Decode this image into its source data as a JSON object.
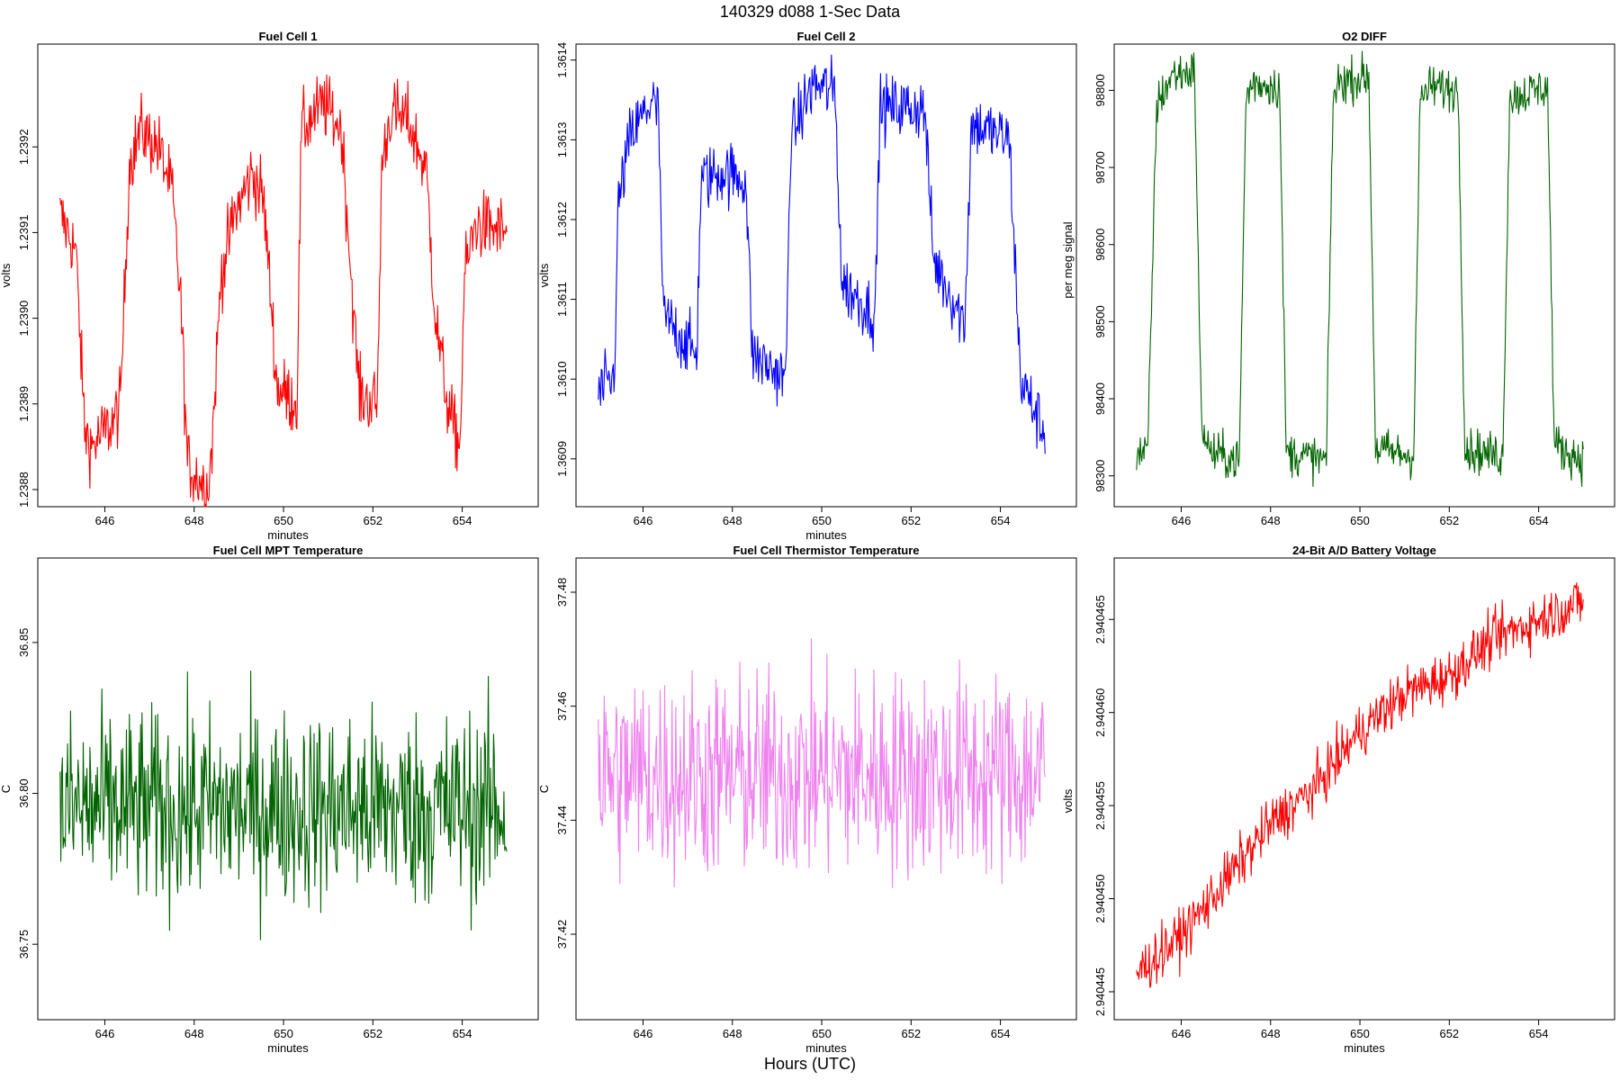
{
  "figure": {
    "title": "140329   d088   1-Sec Data",
    "common_xlabel": "Hours (UTC)"
  },
  "colors": {
    "red": "#ff0000",
    "blue": "#0000ff",
    "darkgreen": "#006400",
    "violet": "#ee82ee"
  },
  "chart_data": [
    {
      "type": "line",
      "title": "Fuel Cell 1",
      "xlabel": "minutes",
      "ylabel": "volts",
      "color": "#ff0000",
      "xlim": [
        644.5,
        655.7
      ],
      "ylim": [
        1.23878,
        1.23932
      ],
      "xticks": [
        646,
        648,
        650,
        652,
        654
      ],
      "xtick_labels": [
        "646",
        "648",
        "650",
        "652",
        "654"
      ],
      "yticks": [
        1.2388,
        1.2389,
        1.239,
        1.2391,
        1.2392
      ],
      "ytick_labels": [
        "1.2388",
        "1.2389",
        "1.2390",
        "1.2391",
        "1.2392"
      ],
      "series": [
        {
          "name": "Fuel Cell 1",
          "x_range": [
            645,
            655
          ],
          "noise": 2e-05,
          "breakpoints": [
            [
              645.0,
              1.23912
            ],
            [
              645.35,
              1.23908
            ],
            [
              645.55,
              1.23887
            ],
            [
              645.7,
              1.23885
            ],
            [
              646.2,
              1.23888
            ],
            [
              646.35,
              1.2389
            ],
            [
              646.55,
              1.23918
            ],
            [
              646.8,
              1.23922
            ],
            [
              647.2,
              1.2392
            ],
            [
              647.5,
              1.23915
            ],
            [
              647.7,
              1.23902
            ],
            [
              647.85,
              1.23883
            ],
            [
              648.3,
              1.2388
            ],
            [
              648.4,
              1.23885
            ],
            [
              648.6,
              1.23905
            ],
            [
              648.9,
              1.23912
            ],
            [
              649.3,
              1.23917
            ],
            [
              649.55,
              1.23914
            ],
            [
              649.75,
              1.239
            ],
            [
              649.85,
              1.23892
            ],
            [
              650.3,
              1.2389
            ],
            [
              650.4,
              1.23922
            ],
            [
              650.9,
              1.23925
            ],
            [
              651.3,
              1.23922
            ],
            [
              651.55,
              1.23902
            ],
            [
              651.7,
              1.23891
            ],
            [
              652.1,
              1.2389
            ],
            [
              652.2,
              1.23918
            ],
            [
              652.4,
              1.23924
            ],
            [
              652.8,
              1.23923
            ],
            [
              653.2,
              1.23917
            ],
            [
              653.4,
              1.239
            ],
            [
              653.7,
              1.23889
            ],
            [
              653.95,
              1.23885
            ],
            [
              654.05,
              1.23905
            ],
            [
              654.3,
              1.23911
            ],
            [
              655.0,
              1.2391
            ]
          ]
        }
      ]
    },
    {
      "type": "line",
      "title": "Fuel Cell 2",
      "xlabel": "minutes",
      "ylabel": "volts",
      "color": "#0000ff",
      "xlim": [
        644.5,
        655.7
      ],
      "ylim": [
        1.36084,
        1.36142
      ],
      "xticks": [
        646,
        648,
        650,
        652,
        654
      ],
      "xtick_labels": [
        "646",
        "648",
        "650",
        "652",
        "654"
      ],
      "yticks": [
        1.3609,
        1.361,
        1.3611,
        1.3612,
        1.3613,
        1.3614
      ],
      "ytick_labels": [
        "1.3609",
        "1.3610",
        "1.3611",
        "1.3612",
        "1.3613",
        "1.3614"
      ],
      "series": [
        {
          "name": "Fuel Cell 2",
          "x_range": [
            645,
            655
          ],
          "noise": 2e-05,
          "breakpoints": [
            [
              645.0,
              1.36098
            ],
            [
              645.35,
              1.361
            ],
            [
              645.45,
              1.36122
            ],
            [
              645.7,
              1.3613
            ],
            [
              646.2,
              1.36135
            ],
            [
              646.35,
              1.36133
            ],
            [
              646.45,
              1.36108
            ],
            [
              647.2,
              1.36103
            ],
            [
              647.3,
              1.36125
            ],
            [
              647.8,
              1.36126
            ],
            [
              648.3,
              1.36125
            ],
            [
              648.45,
              1.36103
            ],
            [
              649.2,
              1.361
            ],
            [
              649.3,
              1.3613
            ],
            [
              649.8,
              1.36137
            ],
            [
              650.3,
              1.36136
            ],
            [
              650.45,
              1.36112
            ],
            [
              651.2,
              1.36108
            ],
            [
              651.3,
              1.36134
            ],
            [
              652.3,
              1.36134
            ],
            [
              652.5,
              1.36115
            ],
            [
              653.2,
              1.36107
            ],
            [
              653.35,
              1.36132
            ],
            [
              654.2,
              1.3613
            ],
            [
              654.45,
              1.361
            ],
            [
              655.0,
              1.36093
            ]
          ]
        }
      ]
    },
    {
      "type": "line",
      "title": "O2 DIFF",
      "xlabel": "",
      "ylabel": "per meg signal",
      "color": "#006400",
      "xlim": [
        644.5,
        655.7
      ],
      "ylim": [
        98260,
        98860
      ],
      "xticks": [
        646,
        648,
        650,
        652,
        654
      ],
      "xtick_labels": [
        "646",
        "648",
        "650",
        "652",
        "654"
      ],
      "yticks": [
        98300,
        98400,
        98500,
        98600,
        98700,
        98800
      ],
      "ytick_labels": [
        "98300",
        "98400",
        "98500",
        "98600",
        "98700",
        "98800"
      ],
      "series": [
        {
          "name": "O2 DIFF",
          "x_range": [
            645,
            655
          ],
          "noise": 14,
          "breakpoints": [
            [
              645.0,
              98330
            ],
            [
              645.25,
              98330
            ],
            [
              645.45,
              98780
            ],
            [
              645.8,
              98820
            ],
            [
              646.3,
              98825
            ],
            [
              646.45,
              98370
            ],
            [
              646.65,
              98330
            ],
            [
              647.3,
              98320
            ],
            [
              647.45,
              98790
            ],
            [
              647.6,
              98810
            ],
            [
              648.2,
              98805
            ],
            [
              648.35,
              98330
            ],
            [
              649.25,
              98320
            ],
            [
              649.4,
              98790
            ],
            [
              649.55,
              98812
            ],
            [
              650.2,
              98818
            ],
            [
              650.35,
              98335
            ],
            [
              651.2,
              98325
            ],
            [
              651.35,
              98790
            ],
            [
              651.6,
              98805
            ],
            [
              652.2,
              98800
            ],
            [
              652.35,
              98335
            ],
            [
              653.2,
              98325
            ],
            [
              653.35,
              98790
            ],
            [
              654.2,
              98805
            ],
            [
              654.35,
              98340
            ],
            [
              655.0,
              98320
            ]
          ]
        }
      ]
    },
    {
      "type": "line",
      "title": "Fuel Cell MPT Temperature",
      "xlabel": "minutes",
      "ylabel": "C",
      "color": "#006400",
      "xlim": [
        644.5,
        655.7
      ],
      "ylim": [
        36.725,
        36.878
      ],
      "xticks": [
        646,
        648,
        650,
        652,
        654
      ],
      "xtick_labels": [
        "646",
        "648",
        "650",
        "652",
        "654"
      ],
      "yticks": [
        36.75,
        36.8,
        36.85
      ],
      "ytick_labels": [
        "36.75",
        "36.80",
        "36.85"
      ],
      "series": [
        {
          "name": "MPT Temperature",
          "x_range": [
            645,
            655
          ],
          "noise": 0.016,
          "breakpoints": [
            [
              645.0,
              36.795
            ],
            [
              655.0,
              36.795
            ]
          ]
        }
      ]
    },
    {
      "type": "line",
      "title": "Fuel Cell Thermistor Temperature",
      "xlabel": "minutes",
      "ylabel": "C",
      "color": "#ee82ee",
      "xlim": [
        644.5,
        655.7
      ],
      "ylim": [
        37.405,
        37.486
      ],
      "xticks": [
        646,
        648,
        650,
        652,
        654
      ],
      "xtick_labels": [
        "646",
        "648",
        "650",
        "652",
        "654"
      ],
      "yticks": [
        37.42,
        37.44,
        37.46,
        37.48
      ],
      "ytick_labels": [
        "37.42",
        "37.44",
        "37.46",
        "37.48"
      ],
      "series": [
        {
          "name": "Thermistor Temperature",
          "x_range": [
            645,
            655
          ],
          "noise": 0.009,
          "breakpoints": [
            [
              645.0,
              37.448
            ],
            [
              655.0,
              37.448
            ]
          ]
        }
      ]
    },
    {
      "type": "line",
      "title": "24-Bit A/D Battery Voltage",
      "xlabel": "minutes",
      "ylabel": "volts",
      "color": "#ff0000",
      "xlim": [
        644.5,
        655.7
      ],
      "ylim": [
        2.9404435,
        2.9404683
      ],
      "xticks": [
        646,
        648,
        650,
        652,
        654
      ],
      "xtick_labels": [
        "646",
        "648",
        "650",
        "652",
        "654"
      ],
      "yticks": [
        2.940445,
        2.94045,
        2.940455,
        2.94046,
        2.940465
      ],
      "ytick_labels": [
        "2.940445",
        "2.940450",
        "2.940455",
        "2.940460",
        "2.940465"
      ],
      "series": [
        {
          "name": "Battery Voltage",
          "x_range": [
            645,
            655
          ],
          "noise": 7e-07,
          "breakpoints": [
            [
              645.0,
              2.940446
            ],
            [
              646.0,
              2.940448
            ],
            [
              647.0,
              2.940451
            ],
            [
              648.0,
              2.940454
            ],
            [
              649.0,
              2.940456
            ],
            [
              650.0,
              2.940459
            ],
            [
              651.0,
              2.940461
            ],
            [
              652.0,
              2.940462
            ],
            [
              653.0,
              2.940464
            ],
            [
              654.0,
              2.940465
            ],
            [
              655.0,
              2.940466
            ]
          ]
        }
      ]
    }
  ]
}
